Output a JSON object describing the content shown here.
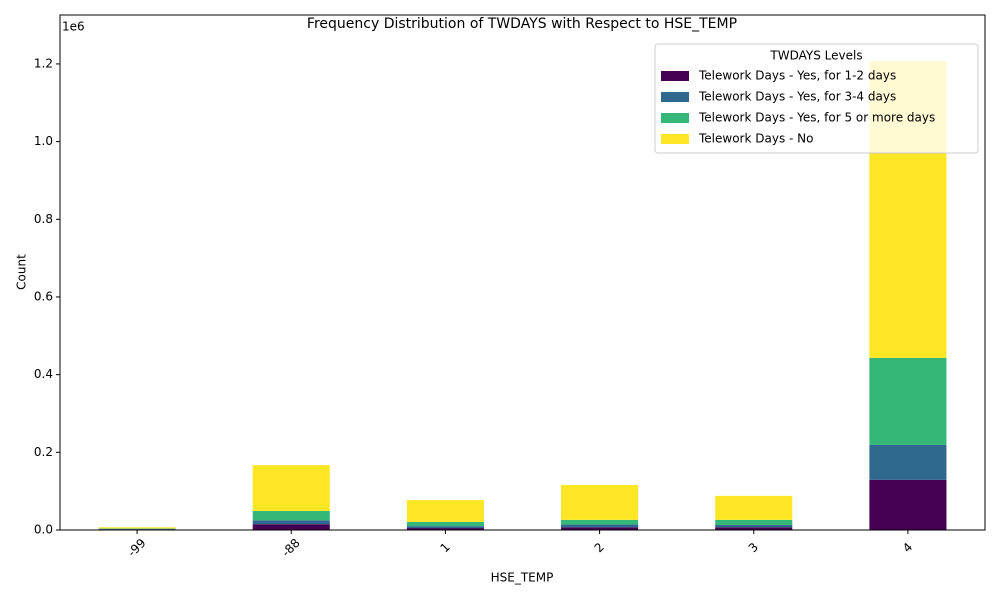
{
  "chart_data": {
    "type": "stacked_bar",
    "title": "Frequency Distribution of TWDAYS with Respect to HSE_TEMP",
    "x_label": "HSE_TEMP",
    "y_label": "Count",
    "y_offset_label": "1e6",
    "categories": [
      "-99",
      "-88",
      "1",
      "2",
      "3",
      "4"
    ],
    "series": [
      {
        "name": "Telework Days - Yes, for 1-2 days",
        "color": "#440154",
        "values": [
          0.002,
          0.015,
          0.005,
          0.007,
          0.007,
          0.129
        ]
      },
      {
        "name": "Telework Days - Yes, for 3-4 days",
        "color": "#31688e",
        "values": [
          0.001,
          0.01,
          0.005,
          0.007,
          0.006,
          0.09
        ]
      },
      {
        "name": "Telework Days - Yes, for 5 or more days",
        "color": "#35b779",
        "values": [
          0.001,
          0.024,
          0.011,
          0.012,
          0.013,
          0.224
        ]
      },
      {
        "name": "Telework Days - No",
        "color": "#fde725",
        "values": [
          0.003,
          0.118,
          0.056,
          0.09,
          0.062,
          0.765
        ]
      }
    ],
    "ylim": [
      0,
      1.326
    ],
    "yticks": [
      {
        "value": 0,
        "label": "0.0"
      },
      0.2,
      0.4,
      0.6,
      0.8,
      {
        "value": 1,
        "label": "1.0"
      },
      1.2
    ],
    "grid": false,
    "legend_title": "TWDAYS Levels",
    "legend_position": "upper-right"
  }
}
